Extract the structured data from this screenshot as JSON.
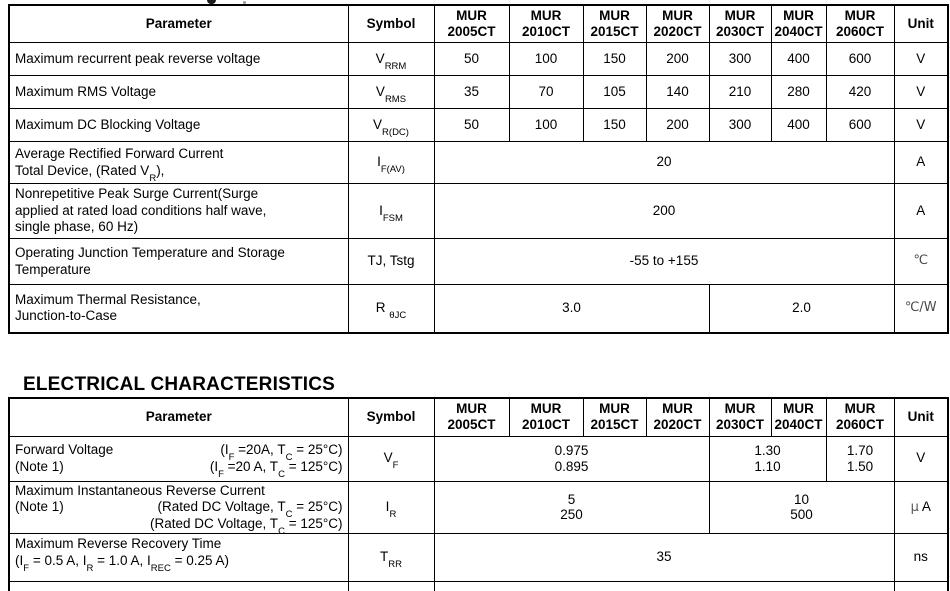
{
  "header_row": {
    "parameter": "Parameter",
    "symbol": "Symbol",
    "unit": "Unit",
    "models": [
      {
        "l1": "MUR",
        "l2": "2005CT"
      },
      {
        "l1": "MUR",
        "l2": "2010CT"
      },
      {
        "l1": "MUR",
        "l2": "2015CT"
      },
      {
        "l1": "MUR",
        "l2": "2020CT"
      },
      {
        "l1": "MUR",
        "l2": "2030CT"
      },
      {
        "l1": "MUR",
        "l2": "2040CT"
      },
      {
        "l1": "MUR",
        "l2": "2060CT"
      }
    ]
  },
  "max_ratings_table": {
    "rows": [
      {
        "param_lines": [
          "Maximum recurrent peak reverse voltage"
        ],
        "symbol": "V~RRM~",
        "values": [
          "50",
          "100",
          "150",
          "200",
          "300",
          "400",
          "600"
        ],
        "unit": "V"
      },
      {
        "param_lines": [
          "Maximum RMS Voltage"
        ],
        "symbol": "V~RMS~",
        "values": [
          "35",
          "70",
          "105",
          "140",
          "210",
          "280",
          "420"
        ],
        "unit": "V"
      },
      {
        "param_lines": [
          "Maximum DC Blocking Voltage"
        ],
        "symbol": "V~R(DC)~",
        "values": [
          "50",
          "100",
          "150",
          "200",
          "300",
          "400",
          "600"
        ],
        "unit": "V"
      },
      {
        "param_lines": [
          "Average Rectified Forward Current",
          "Total Device, (Rated V~R~),"
        ],
        "symbol": "I~F(AV)~",
        "value_span": "20",
        "unit": "A"
      },
      {
        "param_lines": [
          "Nonrepetitive Peak Surge Current(Surge",
          "applied at rated load conditions half wave,",
          "single phase, 60 Hz)"
        ],
        "symbol": "I~FSM~",
        "value_span": "200",
        "unit": "A"
      },
      {
        "param_lines": [
          "Operating Junction Temperature and Storage",
          "Temperature"
        ],
        "symbol": "TJ, Tstg",
        "value_span": "-55 to +155",
        "unit": "℃"
      },
      {
        "param_lines": [
          "Maximum Thermal Resistance,",
          "Junction-to-Case"
        ],
        "symbol": "R ~θJC~",
        "value_left": "3.0",
        "value_right": "2.0",
        "unit": "℃/W"
      }
    ]
  },
  "electrical_section": {
    "heading": "ELECTRICAL CHARACTERISTICS",
    "rows": [
      {
        "param_lines": [
          {
            "left": "Forward Voltage",
            "right": "(I~F~ =20A, T~C~ = 25°C)"
          },
          {
            "left": "(Note 1)",
            "right": "(I~F~ =20 A, T~C~ = 125°C)"
          }
        ],
        "symbol": "V~F~",
        "value_groups": [
          {
            "line1": "0.975",
            "line2": "0.895"
          },
          {
            "line1": "1.30",
            "line2": "1.10"
          },
          {
            "line1": "1.70",
            "line2": "1.50"
          }
        ],
        "unit": "V"
      },
      {
        "param_lines": [
          {
            "left": "Maximum Instantaneous Reverse Current",
            "right": ""
          },
          {
            "left": "(Note 1)",
            "right": "(Rated DC Voltage, T~C~ = 25°C)"
          },
          {
            "left": "",
            "right": "(Rated DC Voltage, T~C~ = 125°C)"
          }
        ],
        "symbol": "I~R~",
        "value_groups": [
          {
            "line1": "5",
            "line2": "250"
          },
          {
            "line1": "10",
            "line2": "500"
          }
        ],
        "unit_mu": "μ",
        "unit": "A"
      },
      {
        "param_lines": [
          {
            "left": "Maximum Reverse Recovery Time",
            "right": ""
          },
          {
            "left": "(I~F~ = 0.5 A, I~R~ = 1.0 A, I~REC~ = 0.25 A)",
            "right": ""
          }
        ],
        "symbol": "T~RR~",
        "value_span": "35",
        "unit": "ns"
      }
    ]
  }
}
